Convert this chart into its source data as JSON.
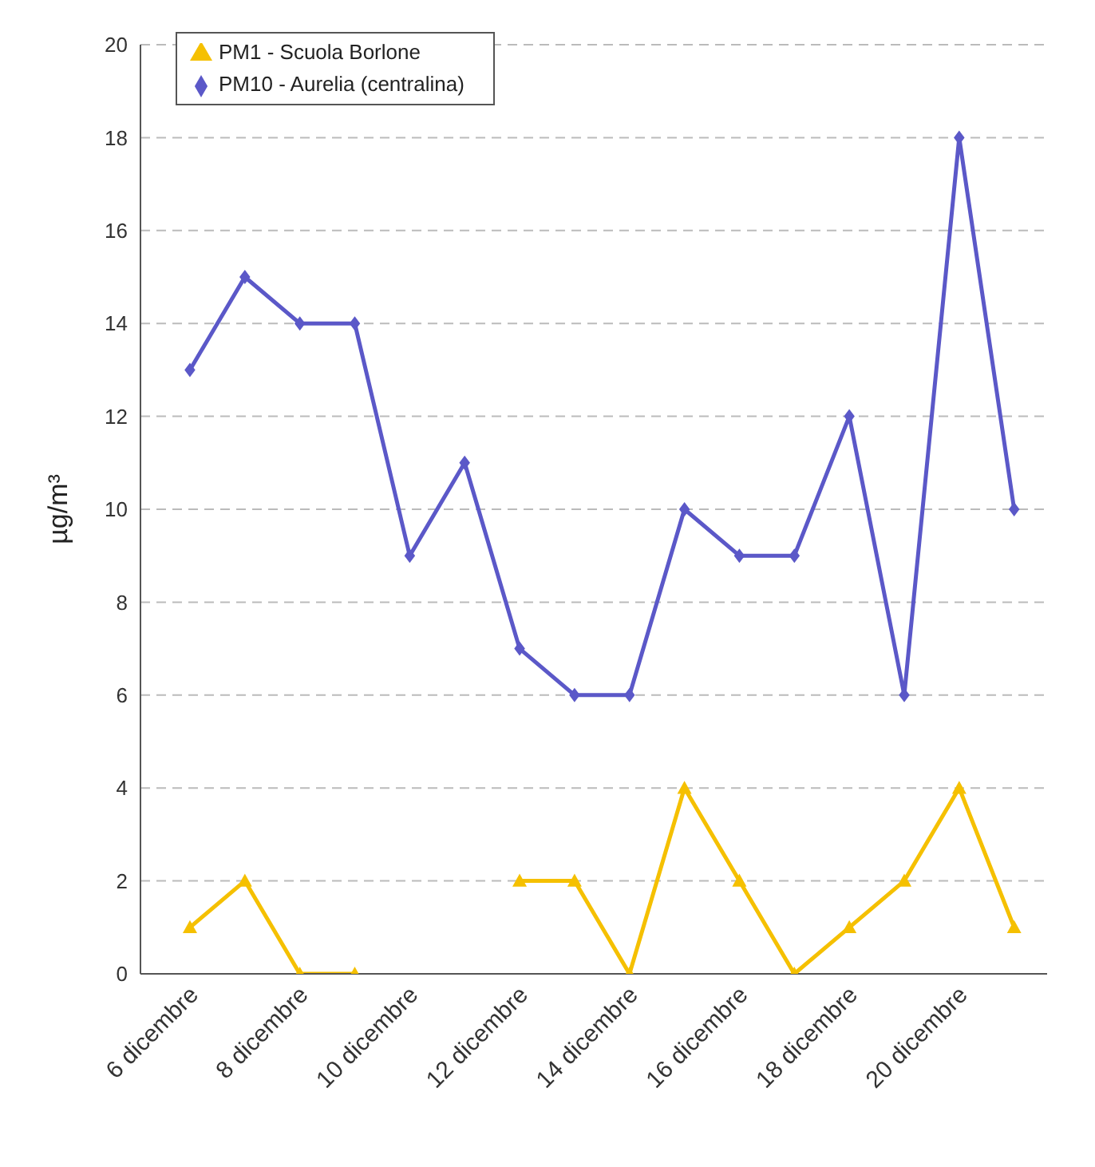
{
  "chart_data": {
    "type": "line",
    "ylabel": "µg/m³",
    "categories": [
      "6 dicembre",
      null,
      "8 dicembre",
      null,
      "10 dicembre",
      null,
      "12 dicembre",
      null,
      "14 dicembre",
      null,
      "16 dicembre",
      null,
      "18 dicembre",
      null,
      "20 dicembre",
      null
    ],
    "series": [
      {
        "name": "PM1 - Scuola Borlone",
        "color": "#f5c000",
        "marker": "triangle",
        "values": [
          1,
          2,
          0,
          0,
          null,
          null,
          2,
          2,
          0,
          4,
          2,
          0,
          1,
          2,
          4,
          1
        ]
      },
      {
        "name": "PM10 - Aurelia (centralina)",
        "color": "#5b58c8",
        "marker": "diamond",
        "values": [
          13,
          15,
          14,
          14,
          9,
          11,
          7,
          6,
          6,
          10,
          9,
          9,
          12,
          6,
          18,
          10
        ]
      }
    ],
    "ylim": [
      0,
      20
    ],
    "yticks": [
      0,
      2,
      4,
      6,
      8,
      10,
      12,
      14,
      16,
      18,
      20
    ],
    "grid": "y",
    "legend": "top left",
    "line_style": "solid"
  }
}
